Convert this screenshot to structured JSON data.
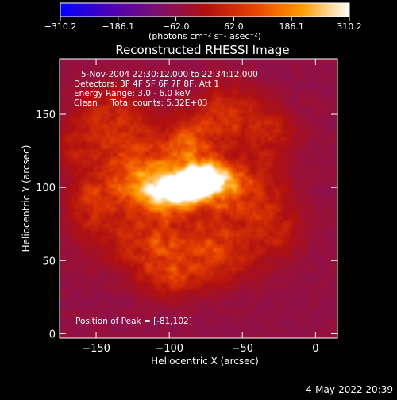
{
  "chart_data": {
    "type": "heatmap",
    "title": "Reconstructed RHESSI Image",
    "colorbar": {
      "ticks": [
        "-310.2",
        "-186.1",
        "-62.0",
        "62.0",
        "186.1",
        "310.2"
      ],
      "range": [
        -310.2,
        310.2
      ],
      "unit_label": "(photons cm⁻² s⁻¹ asec⁻²)",
      "colormap": [
        "#0000ff",
        "#4a00b8",
        "#7a1070",
        "#b01010",
        "#e54000",
        "#ff9a00",
        "#ffffff"
      ]
    },
    "info_lines": [
      "5-Nov-2004 22:30:12.000 to 22:34:12.000",
      "Detectors: 3F 4F 5F 6F 7F 8F, Att 1",
      "Energy Range: 3.0 - 6.0 keV",
      "Clean     Total counts: 5.32E+03"
    ],
    "peak_label": "Position of Peak = [-81,102]",
    "peak": {
      "x": -81,
      "y": 102,
      "value": 310.2
    },
    "xlabel": "Heliocentric X (arcsec)",
    "ylabel": "Heliocentric Y (arcsec)",
    "xlim": [
      -175,
      15
    ],
    "ylim": [
      -3,
      188
    ],
    "xticks": [
      {
        "value": -150,
        "label": "−150"
      },
      {
        "value": -100,
        "label": "−100"
      },
      {
        "value": -50,
        "label": "−50"
      },
      {
        "value": 0,
        "label": "0"
      }
    ],
    "yticks": [
      {
        "value": 0,
        "label": "0"
      },
      {
        "value": 50,
        "label": "50"
      },
      {
        "value": 100,
        "label": "100"
      },
      {
        "value": 150,
        "label": "150"
      }
    ],
    "emission_sources": [
      {
        "x": -88,
        "y": 100,
        "sx": 16,
        "sy": 9,
        "amp": 310
      },
      {
        "x": -72,
        "y": 107,
        "sx": 13,
        "sy": 8,
        "amp": 250
      },
      {
        "x": -108,
        "y": 96,
        "sx": 16,
        "sy": 11,
        "amp": 190
      },
      {
        "x": -88,
        "y": 128,
        "sx": 15,
        "sy": 13,
        "amp": 165
      },
      {
        "x": -125,
        "y": 114,
        "sx": 16,
        "sy": 16,
        "amp": 150
      },
      {
        "x": -48,
        "y": 96,
        "sx": 18,
        "sy": 14,
        "amp": 130
      },
      {
        "x": -112,
        "y": 62,
        "sx": 20,
        "sy": 14,
        "amp": 135
      },
      {
        "x": -68,
        "y": 58,
        "sx": 20,
        "sy": 16,
        "amp": 125
      },
      {
        "x": -140,
        "y": 148,
        "sx": 15,
        "sy": 15,
        "amp": 105
      },
      {
        "x": -60,
        "y": 150,
        "sx": 16,
        "sy": 14,
        "amp": 115
      },
      {
        "x": -152,
        "y": 90,
        "sx": 13,
        "sy": 18,
        "amp": 105
      },
      {
        "x": -30,
        "y": 135,
        "sx": 13,
        "sy": 13,
        "amp": 85
      },
      {
        "x": -100,
        "y": 38,
        "sx": 15,
        "sy": 11,
        "amp": 80
      },
      {
        "x": -28,
        "y": 70,
        "sx": 13,
        "sy": 13,
        "amp": 75
      },
      {
        "x": -165,
        "y": 130,
        "sx": 10,
        "sy": 12,
        "amp": 65
      }
    ],
    "background_level": -55
  },
  "timestamp": "4-May-2022 20:39"
}
